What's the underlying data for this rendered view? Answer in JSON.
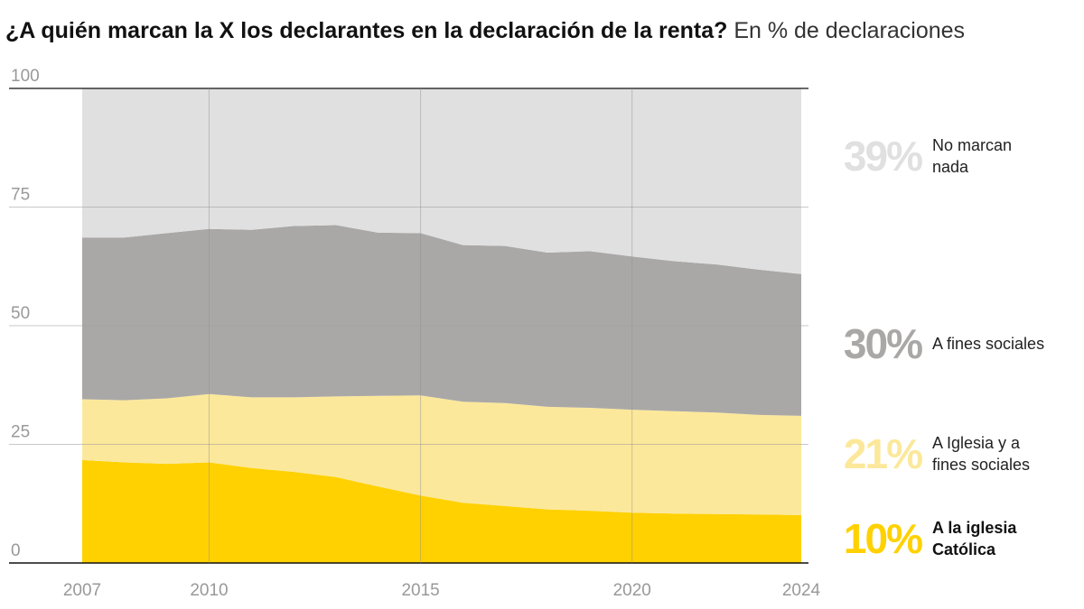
{
  "title": {
    "main": "¿A quién marcan la X los declarantes en la declaración de la renta?",
    "sub": "En % de declaraciones"
  },
  "colors": {
    "catolica": "#FFD100",
    "ambas": "#FCE89B",
    "fines_sociales": "#AAA8A7",
    "nada": "#E0E0E0",
    "gridline": "#cfcfcf",
    "axis_text": "#999999"
  },
  "labels": [
    {
      "pct": "39%",
      "desc": "No marcan nada",
      "color": "#E0E0E0",
      "strong": false
    },
    {
      "pct": "30%",
      "desc": "A fines sociales",
      "color": "#AAA8A7",
      "strong": false
    },
    {
      "pct": "21%",
      "desc": "A Iglesia y a fines sociales",
      "color": "#FCE89B",
      "strong": false
    },
    {
      "pct": "10%",
      "desc": "A la iglesia Católica",
      "color": "#FFD100",
      "strong": true
    }
  ],
  "chart_data": {
    "type": "area",
    "stacked": true,
    "x": [
      2007,
      2008,
      2009,
      2010,
      2011,
      2012,
      2013,
      2014,
      2015,
      2016,
      2017,
      2018,
      2019,
      2020,
      2021,
      2022,
      2023,
      2024
    ],
    "x_ticks": [
      "2007",
      "2010",
      "2015",
      "2020",
      "2024"
    ],
    "y_ticks": [
      "0",
      "25",
      "50",
      "75",
      "100"
    ],
    "ylim": [
      0,
      100
    ],
    "series": [
      {
        "name": "A la iglesia Católica",
        "values": [
          21.7,
          21.2,
          20.9,
          21.2,
          20.0,
          19.2,
          18.1,
          16.1,
          14.2,
          12.7,
          12.0,
          11.3,
          11.0,
          10.6,
          10.4,
          10.3,
          10.2,
          10.1
        ]
      },
      {
        "name": "A Iglesia y a fines sociales",
        "values": [
          12.8,
          13.1,
          13.8,
          14.4,
          14.9,
          15.7,
          17.0,
          19.1,
          21.1,
          21.3,
          21.7,
          21.6,
          21.7,
          21.7,
          21.6,
          21.4,
          21.0,
          20.9
        ]
      },
      {
        "name": "A fines sociales",
        "values": [
          34.1,
          34.3,
          34.8,
          34.8,
          35.3,
          36.1,
          36.1,
          34.4,
          34.2,
          33.0,
          33.1,
          32.5,
          33.0,
          32.3,
          31.6,
          31.2,
          30.6,
          29.9
        ]
      },
      {
        "name": "No marcan nada",
        "values": [
          31.4,
          31.4,
          30.5,
          29.6,
          29.8,
          29.0,
          28.8,
          30.4,
          30.5,
          33.0,
          33.2,
          34.6,
          34.3,
          35.4,
          36.4,
          37.1,
          38.2,
          39.1
        ]
      }
    ],
    "grid": true,
    "legend": "right"
  }
}
